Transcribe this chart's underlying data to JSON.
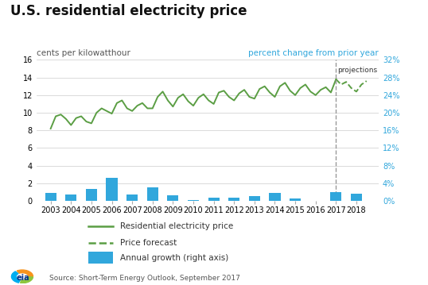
{
  "title": "U.S. residential electricity price",
  "ylabel_left": "cents per kilowatthour",
  "ylabel_right": "percent change from prior year",
  "source": "Source: Short-Term Energy Outlook, September 2017",
  "background_color": "#ffffff",
  "price_x": [
    2003.0,
    2003.25,
    2003.5,
    2003.75,
    2004.0,
    2004.25,
    2004.5,
    2004.75,
    2005.0,
    2005.25,
    2005.5,
    2005.75,
    2006.0,
    2006.25,
    2006.5,
    2006.75,
    2007.0,
    2007.25,
    2007.5,
    2007.75,
    2008.0,
    2008.25,
    2008.5,
    2008.75,
    2009.0,
    2009.25,
    2009.5,
    2009.75,
    2010.0,
    2010.25,
    2010.5,
    2010.75,
    2011.0,
    2011.25,
    2011.5,
    2011.75,
    2012.0,
    2012.25,
    2012.5,
    2012.75,
    2013.0,
    2013.25,
    2013.5,
    2013.75,
    2014.0,
    2014.25,
    2014.5,
    2014.75,
    2015.0,
    2015.25,
    2015.5,
    2015.75,
    2016.0,
    2016.25,
    2016.5,
    2016.75,
    2017.0
  ],
  "price_y": [
    8.2,
    9.6,
    9.8,
    9.3,
    8.6,
    9.4,
    9.6,
    9.0,
    8.8,
    10.0,
    10.5,
    10.2,
    9.9,
    11.1,
    11.4,
    10.5,
    10.2,
    10.8,
    11.1,
    10.5,
    10.5,
    11.8,
    12.4,
    11.4,
    10.7,
    11.7,
    12.1,
    11.3,
    10.8,
    11.7,
    12.1,
    11.4,
    11.0,
    12.3,
    12.5,
    11.8,
    11.4,
    12.2,
    12.6,
    11.8,
    11.6,
    12.7,
    13.0,
    12.3,
    11.8,
    13.0,
    13.4,
    12.5,
    12.0,
    12.8,
    13.2,
    12.4,
    12.0,
    12.6,
    12.9,
    12.3,
    13.8
  ],
  "forecast_x": [
    2017.0,
    2017.25,
    2017.5,
    2017.75,
    2018.0,
    2018.25,
    2018.5
  ],
  "forecast_y": [
    13.8,
    13.2,
    13.5,
    12.8,
    12.4,
    13.2,
    13.6
  ],
  "bar_years": [
    2003,
    2004,
    2005,
    2006,
    2007,
    2008,
    2009,
    2010,
    2011,
    2012,
    2013,
    2014,
    2015,
    2016,
    2017,
    2018
  ],
  "bar_values": [
    1.75,
    1.5,
    2.8,
    5.3,
    1.4,
    3.0,
    1.3,
    0.15,
    0.8,
    0.7,
    1.1,
    1.8,
    0.6,
    0.1,
    2.0,
    1.6
  ],
  "price_color": "#5b9e44",
  "forecast_color": "#5b9e44",
  "bar_color": "#31a7dc",
  "vline_x": 2017.0,
  "vline_color": "#999999",
  "projections_label": "projections",
  "ylim_left": [
    0,
    16
  ],
  "ylim_right": [
    0,
    32
  ],
  "yticks_left": [
    0,
    2,
    4,
    6,
    8,
    10,
    12,
    14,
    16
  ],
  "yticks_right_vals": [
    0,
    4,
    8,
    12,
    16,
    20,
    24,
    28,
    32
  ],
  "yticks_right_labels": [
    "0%",
    "4%",
    "8%",
    "12%",
    "16%",
    "20%",
    "24%",
    "28%",
    "32%"
  ],
  "xlim": [
    2002.3,
    2019.1
  ],
  "xticks": [
    2003,
    2004,
    2005,
    2006,
    2007,
    2008,
    2009,
    2010,
    2011,
    2012,
    2013,
    2014,
    2015,
    2016,
    2017,
    2018
  ],
  "legend_labels": [
    "Residential electricity price",
    "Price forecast",
    "Annual growth (right axis)"
  ],
  "title_fontsize": 12,
  "axis_label_fontsize": 7.5,
  "tick_fontsize": 7,
  "legend_fontsize": 7.5,
  "source_fontsize": 6.5,
  "right_axis_color": "#31a7dc"
}
